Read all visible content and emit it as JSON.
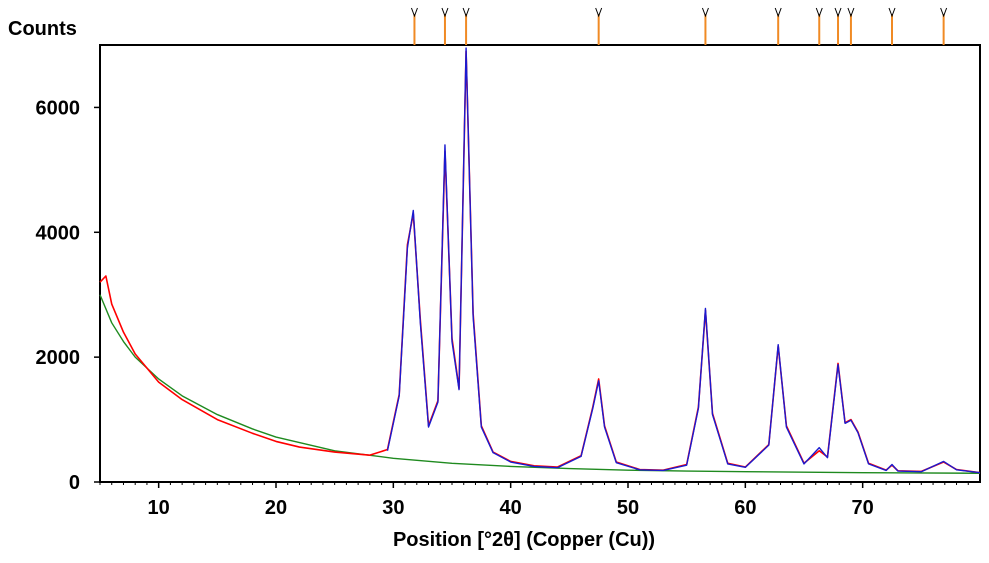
{
  "chart_data": {
    "type": "line",
    "title": "",
    "ylabel": "Counts",
    "xlabel": "Position [°2θ] (Copper (Cu))",
    "xlim": [
      5,
      80
    ],
    "ylim": [
      0,
      7000
    ],
    "x_ticks": [
      10,
      20,
      30,
      40,
      50,
      60,
      70
    ],
    "y_ticks": [
      0,
      2000,
      4000,
      6000
    ],
    "grid": false,
    "legend": "none",
    "peak_markers": [
      31.8,
      34.4,
      36.2,
      47.5,
      56.6,
      62.8,
      66.3,
      67.9,
      69.0,
      72.5,
      76.9
    ],
    "series": [
      {
        "role": "observed",
        "color": "#ff0000",
        "x": [
          5,
          5.5,
          6,
          7,
          8,
          10,
          12,
          15,
          18,
          20,
          22,
          25,
          28,
          29.5,
          30.5,
          31.2,
          31.7,
          32.3,
          33.0,
          33.8,
          34.4,
          35.0,
          35.6,
          36.2,
          36.8,
          37.5,
          38.5,
          40,
          42,
          44,
          46,
          47.0,
          47.5,
          48.0,
          49,
          51,
          53,
          55,
          56.0,
          56.6,
          57.2,
          58.5,
          60,
          62.0,
          62.8,
          63.5,
          65,
          66.3,
          67.0,
          67.9,
          68.5,
          69.0,
          69.6,
          70.5,
          72.0,
          72.5,
          73.0,
          75,
          76.9,
          78,
          80
        ],
        "y": [
          3200,
          3300,
          2850,
          2400,
          2050,
          1600,
          1320,
          1000,
          780,
          650,
          560,
          480,
          430,
          520,
          1400,
          3800,
          4300,
          2600,
          900,
          1300,
          5300,
          2300,
          1500,
          6900,
          2700,
          900,
          480,
          330,
          260,
          240,
          420,
          1200,
          1650,
          900,
          320,
          200,
          190,
          280,
          1200,
          2750,
          1100,
          300,
          240,
          600,
          2180,
          900,
          300,
          500,
          400,
          1900,
          950,
          1000,
          800,
          300,
          190,
          270,
          180,
          170,
          320,
          200,
          150
        ]
      },
      {
        "role": "calculated",
        "color": "#1a1ad0",
        "x": [
          29.5,
          30.5,
          31.2,
          31.7,
          32.3,
          33.0,
          33.8,
          34.4,
          35.0,
          35.6,
          36.2,
          36.8,
          37.5,
          38.5,
          40,
          42,
          44,
          46,
          47.0,
          47.5,
          48.0,
          49,
          51,
          53,
          55,
          56.0,
          56.6,
          57.2,
          58.5,
          60,
          62.0,
          62.8,
          63.5,
          65,
          66.3,
          67.0,
          67.9,
          68.5,
          69.0,
          69.6,
          70.5,
          72.0,
          72.5,
          73.0,
          75,
          76.9,
          78,
          80
        ],
        "y": [
          500,
          1380,
          3750,
          4350,
          2550,
          880,
          1280,
          5400,
          2250,
          1480,
          6950,
          2650,
          880,
          470,
          320,
          250,
          230,
          410,
          1180,
          1620,
          880,
          310,
          195,
          185,
          270,
          1180,
          2780,
          1080,
          290,
          235,
          590,
          2200,
          880,
          290,
          550,
          390,
          1880,
          940,
          990,
          790,
          290,
          185,
          280,
          175,
          165,
          330,
          195,
          150
        ]
      },
      {
        "role": "background",
        "color": "#1f8a1f",
        "x": [
          5,
          6,
          7,
          8,
          10,
          12,
          15,
          18,
          20,
          25,
          30,
          35,
          40,
          45,
          50,
          55,
          60,
          70,
          80
        ],
        "y": [
          3000,
          2550,
          2250,
          2000,
          1650,
          1380,
          1080,
          850,
          720,
          500,
          380,
          300,
          250,
          215,
          190,
          175,
          165,
          150,
          140
        ]
      }
    ]
  }
}
